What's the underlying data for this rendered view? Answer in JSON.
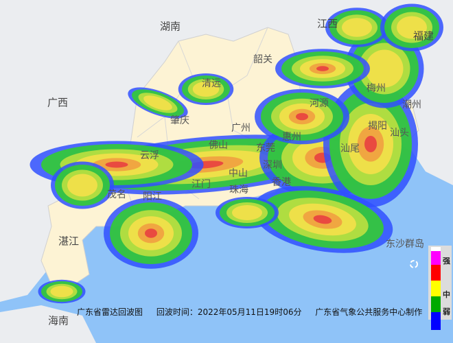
{
  "map": {
    "colors": {
      "sea": "#8fc3f8",
      "guangdong": "#fdf3d4",
      "neighbor_land": "#ebedf0",
      "boundary": "#d0d0d0"
    },
    "region_labels": [
      "湖南",
      "江西",
      "福建",
      "广西",
      "海南"
    ],
    "city_labels": [
      "韶关",
      "清远",
      "河源",
      "梅州",
      "潮州",
      "肇庆",
      "广州",
      "惠州",
      "揭阳",
      "汕头",
      "云浮",
      "佛山",
      "东莞",
      "汕尾",
      "深圳",
      "中山",
      "江门",
      "珠海",
      "香港",
      "茂名",
      "阳江",
      "湛江",
      "东沙群岛"
    ]
  },
  "caption": {
    "title": "广东省雷达回波图",
    "time": "回波时间：2022年05月11日19时06分",
    "producer": "广东省气象公共服务中心制作"
  },
  "legend": {
    "labels": {
      "strong": "强",
      "medium": "中",
      "weak": "弱"
    },
    "colors": [
      "#ffffff",
      "#ff00ff",
      "#ff0000",
      "#ffff00",
      "#00aa00",
      "#0000ff"
    ]
  }
}
